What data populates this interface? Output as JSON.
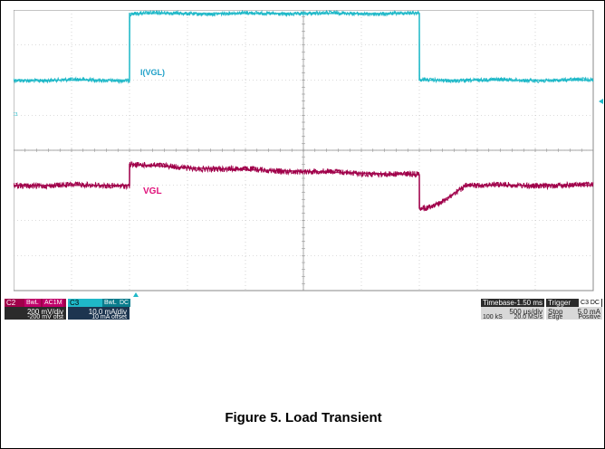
{
  "chart_data": {
    "type": "line",
    "time_axis": {
      "divisions": 10,
      "time_per_div_us": 500,
      "total_ms": 5.0
    },
    "vertical_divisions": 8,
    "series": [
      {
        "name": "I(VGL)",
        "channel": "C3",
        "color": "#1fb8c8",
        "units": "mA",
        "scale_per_div": 10.0,
        "offset": 10,
        "points_time_ms": [
          0,
          1.0,
          1.0,
          3.5,
          3.5,
          5.0
        ],
        "points_value_mA": [
          10,
          10,
          29,
          29,
          10,
          10
        ],
        "marker_value": 10
      },
      {
        "name": "VGL",
        "channel": "C2",
        "color": "#a0004a",
        "units": "mV",
        "scale_per_div": 200,
        "offset": -200,
        "points_time_ms": [
          0,
          1.0,
          1.0,
          1.5,
          2.5,
          3.5,
          3.5,
          3.55,
          3.7,
          3.9,
          5.0
        ],
        "points_value_mV": [
          0,
          0,
          120,
          100,
          80,
          60,
          -130,
          -135,
          -90,
          0,
          0
        ],
        "marker_value": 0
      }
    ]
  },
  "labels": {
    "ivgl": "I(VGL)",
    "vgl": "VGL",
    "marker_c3": "C3",
    "marker_c2": "C2"
  },
  "panel": {
    "c2": {
      "name": "C2",
      "tag1": "BwL",
      "tag2": "AC1M",
      "line1": "200 mV/div",
      "line2": "-200 mV ofst"
    },
    "c3": {
      "name": "C3",
      "tag1": "BwL",
      "tag2": "DC",
      "line1": "10.0 mA/div",
      "line2": "10 mA offset"
    },
    "timebase": {
      "label": "Timebase",
      "value": "-1.50 ms",
      "line1": "500 µs/div",
      "line2a": "100 kS",
      "line2b": "20.0 MS/s"
    },
    "trigger": {
      "label": "Trigger",
      "src": "C3",
      "coupling": "DC",
      "line1a": "Stop",
      "line1b": "5.0 mA",
      "line2a": "Edge",
      "line2b": "Positive"
    }
  },
  "caption": "Figure 5. Load Transient"
}
